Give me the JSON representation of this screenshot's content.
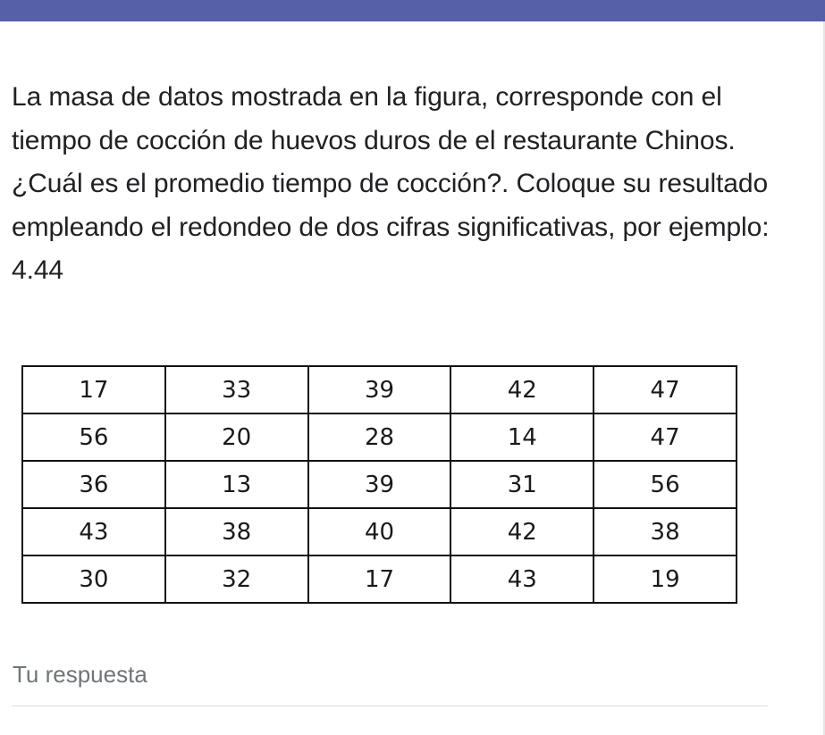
{
  "header": {
    "accent_color": "#5560a8"
  },
  "question": {
    "text": "La masa de datos mostrada en la figura, corresponde con el tiempo de cocción de huevos duros de el restaurante Chinos. ¿Cuál es el promedio tiempo de cocción?. Coloque su resultado empleando el redondeo de dos cifras significativas, por ejemplo: 4.44"
  },
  "table": {
    "rows": [
      [
        "17",
        "33",
        "39",
        "42",
        "47"
      ],
      [
        "56",
        "20",
        "28",
        "14",
        "47"
      ],
      [
        "36",
        "13",
        "39",
        "31",
        "56"
      ],
      [
        "43",
        "38",
        "40",
        "42",
        "38"
      ],
      [
        "30",
        "32",
        "17",
        "43",
        "19"
      ]
    ]
  },
  "answer": {
    "label": "Tu respuesta",
    "value": ""
  }
}
